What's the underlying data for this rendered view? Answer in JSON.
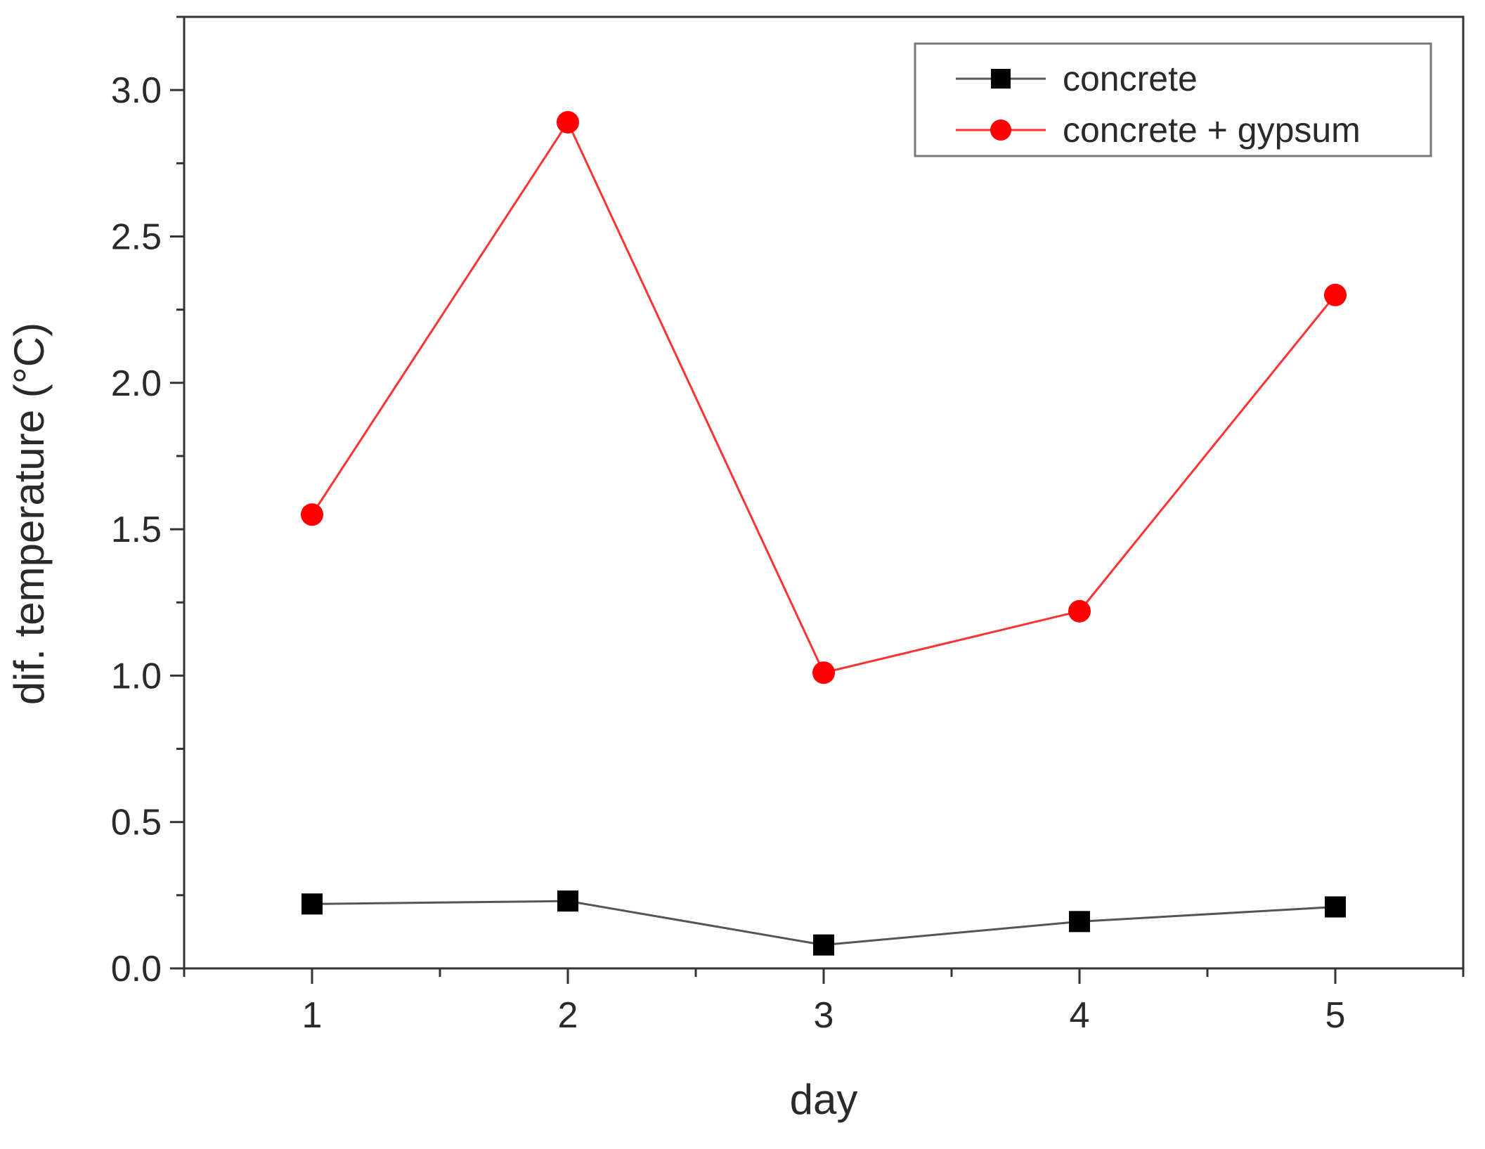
{
  "chart_data": {
    "type": "line",
    "title": "",
    "xlabel": "day",
    "ylabel": "dif. temperature (°C)",
    "x": [
      1,
      2,
      3,
      4,
      5
    ],
    "xticks": [
      1,
      2,
      3,
      4,
      5
    ],
    "xtick_labels": [
      "1",
      "2",
      "3",
      "4",
      "5"
    ],
    "yticks": [
      0.0,
      0.5,
      1.0,
      1.5,
      2.0,
      2.5,
      3.0
    ],
    "ytick_labels": [
      "0.0",
      "0.5",
      "1.0",
      "1.5",
      "2.0",
      "2.5",
      "3.0"
    ],
    "xlim": [
      0.5,
      5.5
    ],
    "ylim": [
      0,
      3.25
    ],
    "grid": false,
    "legend_position": "top-right",
    "series": [
      {
        "name": "concrete",
        "marker": "square",
        "color": "#000000",
        "line_color": "#555555",
        "values": [
          0.22,
          0.23,
          0.08,
          0.16,
          0.21
        ]
      },
      {
        "name": "concrete + gypsum",
        "marker": "circle",
        "color": "#ff0000",
        "line_color": "#ff3333",
        "values": [
          1.55,
          2.89,
          1.01,
          1.22,
          2.3
        ]
      }
    ]
  }
}
